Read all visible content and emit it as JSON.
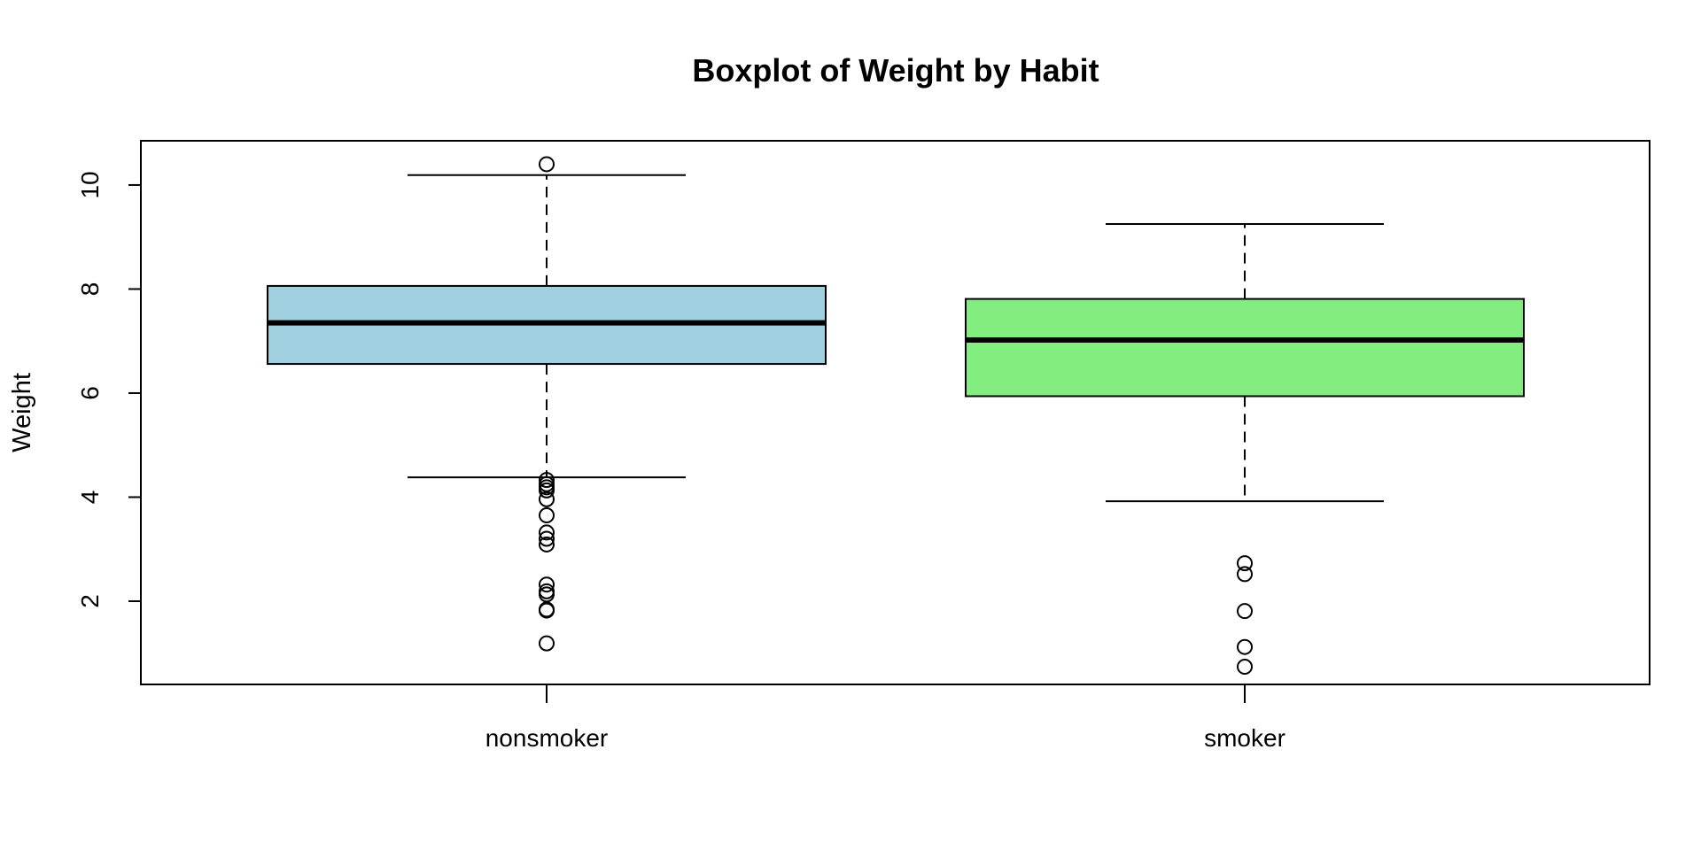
{
  "chart_data": {
    "type": "boxplot",
    "title": "Boxplot of Weight by Habit",
    "xlabel": "",
    "ylabel": "Weight",
    "ylim": [
      0.4,
      10.85
    ],
    "yticks": [
      2,
      4,
      6,
      8,
      10
    ],
    "grid": false,
    "legend": "none",
    "categories": [
      "nonsmoker",
      "smoker"
    ],
    "boxes": [
      {
        "category": "nonsmoker",
        "color": "#a0cfe0",
        "whisker_low": 4.38,
        "q1": 6.56,
        "median": 7.35,
        "q3": 8.06,
        "whisker_high": 10.19,
        "outliers": [
          10.4,
          4.33,
          4.25,
          4.19,
          4.13,
          3.96,
          3.65,
          3.32,
          3.2,
          3.09,
          2.32,
          2.19,
          2.13,
          1.84,
          1.82,
          1.19
        ]
      },
      {
        "category": "smoker",
        "color": "#83ee7f",
        "whisker_low": 3.92,
        "q1": 5.94,
        "median": 7.02,
        "q3": 7.81,
        "whisker_high": 9.25,
        "outliers": [
          2.73,
          2.52,
          1.81,
          1.12,
          0.74
        ]
      }
    ]
  }
}
